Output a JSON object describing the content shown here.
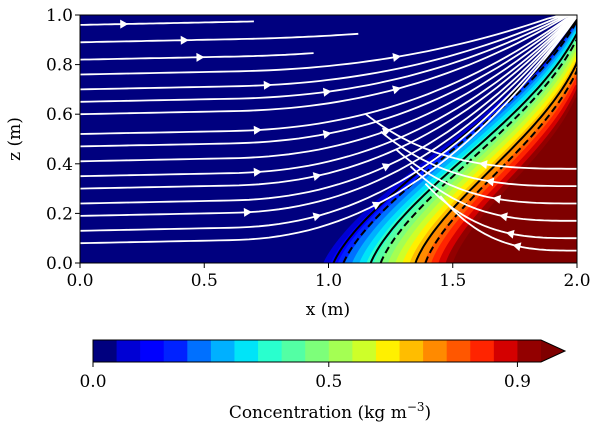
{
  "chart_data": {
    "type": "heatmap",
    "subtype": "filled-contour-with-streamlines",
    "xlabel": "x (m)",
    "ylabel": "z (m)",
    "xlim": [
      0.0,
      2.0
    ],
    "ylim": [
      0.0,
      1.0
    ],
    "xticks": [
      "0.0",
      "0.5",
      "1.0",
      "1.5",
      "2.0"
    ],
    "xtick_values": [
      0.0,
      0.5,
      1.0,
      1.5,
      2.0
    ],
    "yticks": [
      "0.0",
      "0.2",
      "0.4",
      "0.6",
      "0.8",
      "1.0"
    ],
    "ytick_values": [
      0.0,
      0.2,
      0.4,
      0.6,
      0.8,
      1.0
    ],
    "grid": false,
    "field": {
      "name": "Concentration",
      "description": "Dense fluid occupying lower-right corner; S-shaped front rising from x≈1.0 at z=0 to x≈2.0 at z=1.0",
      "front_contours": [
        {
          "level": 0.05,
          "points": [
            [
              0.97,
              0.0
            ],
            [
              1.1,
              0.15
            ],
            [
              1.35,
              0.35
            ],
            [
              1.6,
              0.55
            ],
            [
              1.85,
              0.75
            ],
            [
              1.97,
              0.95
            ],
            [
              2.0,
              1.0
            ]
          ]
        },
        {
          "level": 0.5,
          "points": [
            [
              1.2,
              0.0
            ],
            [
              1.3,
              0.15
            ],
            [
              1.5,
              0.33
            ],
            [
              1.7,
              0.52
            ],
            [
              1.9,
              0.72
            ],
            [
              1.99,
              0.95
            ],
            [
              2.0,
              1.0
            ]
          ]
        },
        {
          "level": 0.9,
          "points": [
            [
              1.42,
              0.0
            ],
            [
              1.52,
              0.12
            ],
            [
              1.7,
              0.28
            ],
            [
              1.88,
              0.45
            ],
            [
              1.97,
              0.6
            ],
            [
              2.0,
              0.7
            ]
          ]
        }
      ]
    },
    "contour_lines": [
      {
        "style": "solid",
        "x_at_z0": 1.02
      },
      {
        "style": "dashed",
        "x_at_z0": 1.06
      },
      {
        "style": "solid",
        "x_at_z0": 1.17
      },
      {
        "style": "dashed",
        "x_at_z0": 1.21
      },
      {
        "style": "solid",
        "x_at_z0": 1.35
      },
      {
        "style": "dashed",
        "x_at_z0": 1.39
      }
    ],
    "streamlines": {
      "color": "#ffffff",
      "upper_flow_direction": "left-to-right",
      "lower_right_flow_direction": "right-to-left"
    },
    "colorbar": {
      "label": "Concentration (kg m⁻³)",
      "ticks": [
        "0.0",
        "0.5",
        "0.9"
      ],
      "tick_values": [
        0.0,
        0.5,
        0.9
      ],
      "vmin": 0.0,
      "vmax": 0.95,
      "step": 0.05,
      "extend": "max",
      "orientation": "horizontal",
      "placement": "bottom",
      "colors": [
        "#00007f",
        "#0000d4",
        "#0000ff",
        "#0022ff",
        "#0070ff",
        "#00b0ff",
        "#00e4f8",
        "#29ffce",
        "#53ffa4",
        "#7dff7a",
        "#a4ff53",
        "#ceff29",
        "#fff000",
        "#ffbd00",
        "#ff8a00",
        "#ff5700",
        "#ff2400",
        "#d40000",
        "#930000"
      ],
      "extend_color": "#7f0000"
    }
  }
}
